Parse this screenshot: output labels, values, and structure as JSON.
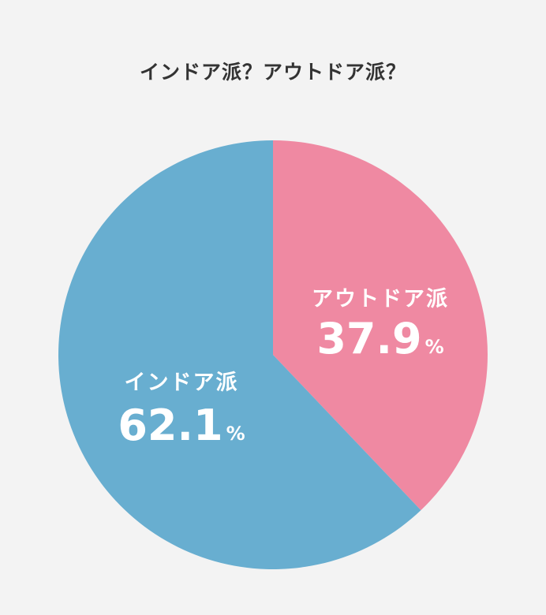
{
  "chart_data": {
    "type": "pie",
    "title": "インドア派？アウトドア派？",
    "slices": [
      {
        "name": "アウトドア派",
        "value": 37.9,
        "label": "37.9",
        "unit": "%",
        "color": "#ef89a2"
      },
      {
        "name": "インドア派",
        "value": 62.1,
        "label": "62.1",
        "unit": "%",
        "color": "#68aed0"
      }
    ],
    "start_angle": "12 o'clock",
    "direction": "clockwise"
  }
}
